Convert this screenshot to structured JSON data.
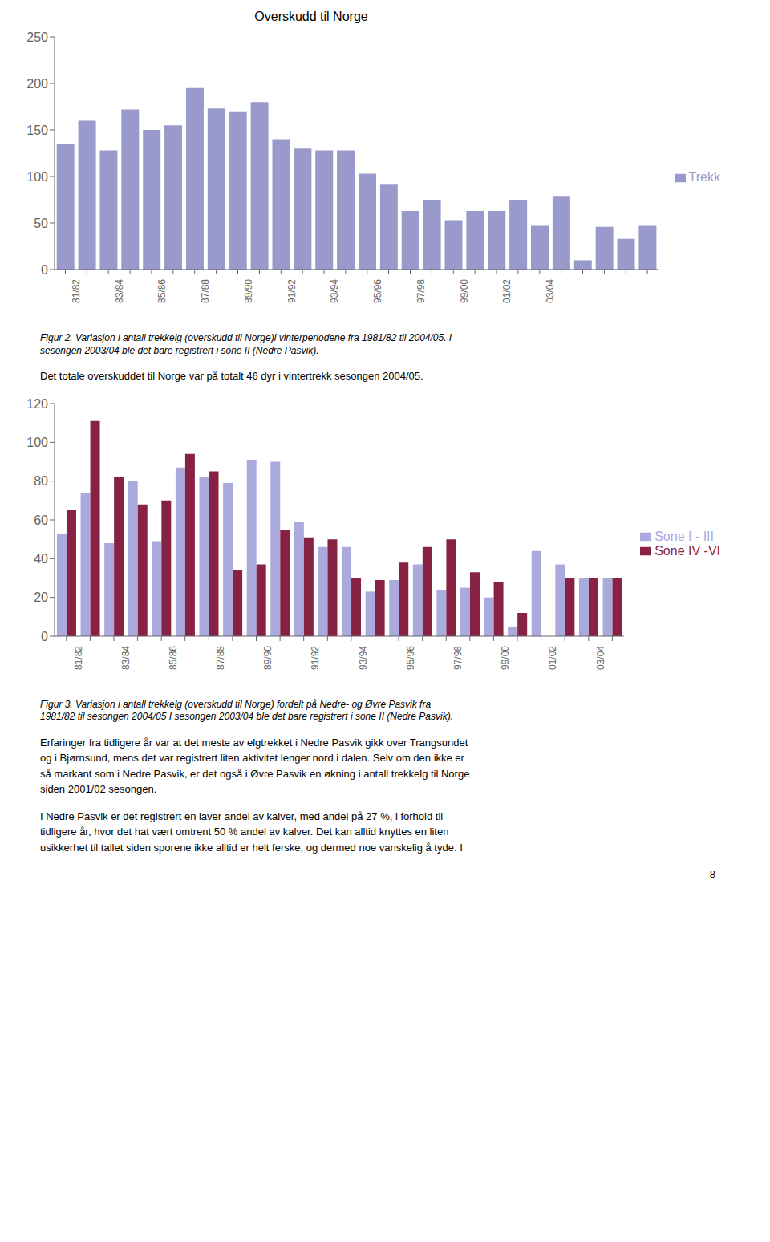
{
  "chart_data": [
    {
      "type": "bar",
      "title": "Overskudd til Norge",
      "categories": [
        "81/82",
        null,
        "83/84",
        null,
        "85/86",
        null,
        "87/88",
        null,
        "89/90",
        null,
        "91/92",
        null,
        "93/94",
        null,
        "95/96",
        null,
        "97/98",
        null,
        "99/00",
        null,
        "01/02",
        null,
        "03/04",
        null,
        null,
        null,
        null,
        null
      ],
      "series": [
        {
          "name": "Trekk",
          "color": "#9999cc",
          "values": [
            135,
            160,
            128,
            172,
            150,
            155,
            195,
            173,
            170,
            180,
            140,
            130,
            128,
            128,
            103,
            92,
            63,
            75,
            53,
            63,
            63,
            75,
            47,
            79,
            10,
            46,
            33,
            47
          ]
        }
      ],
      "ylim": [
        0,
        250
      ],
      "yticks": [
        0,
        50,
        100,
        150,
        200,
        250
      ],
      "grid": false,
      "legend": "right",
      "annotations": [
        "Figur 2. Variasjon i antall trekkelg (overskudd til Norge)i vinterperiodene fra 1981/82 til 2004/05. I\nsesongen 2003/04 ble det bare registrert i sone II (Nedre Pasvik).",
        "Det totale overskuddet til Norge var på totalt 46 dyr i vintertrekk sesongen 2004/05."
      ]
    },
    {
      "type": "bar",
      "categories": [
        "81/82",
        null,
        "83/84",
        null,
        "85/86",
        null,
        "87/88",
        null,
        "89/90",
        null,
        "91/92",
        null,
        "93/94",
        null,
        "95/96",
        null,
        "97/98",
        null,
        "99/00",
        null,
        "01/02",
        null,
        "03/04",
        null
      ],
      "series": [
        {
          "name": "Sone I - III",
          "color": "#aaaadd",
          "values": [
            53,
            74,
            48,
            80,
            49,
            87,
            82,
            79,
            91,
            90,
            59,
            46,
            46,
            23,
            29,
            37,
            24,
            25,
            20,
            5,
            44,
            37,
            30,
            30
          ]
        },
        {
          "name": "Sone IV -VI",
          "color": "#882244",
          "values": [
            65,
            111,
            82,
            68,
            70,
            94,
            85,
            34,
            37,
            55,
            51,
            50,
            30,
            29,
            38,
            46,
            50,
            33,
            28,
            12,
            0,
            30,
            30,
            30
          ]
        }
      ],
      "ylim": [
        0,
        120
      ],
      "yticks": [
        0,
        20,
        40,
        60,
        80,
        100,
        120
      ],
      "grid": false,
      "legend": "right",
      "annotations": [
        "Figur 3. Variasjon i antall trekkelg (overskudd til Norge) fordelt på Nedre- og Øvre Pasvik fra\n1981/82 til sesongen 2004/05 I sesongen 2003/04 ble det bare registrert i sone II (Nedre Pasvik).",
        "Erfaringer fra tidligere år var at det meste av elgtrekket i Nedre Pasvik gikk over Trangsundet\nog i Bjørnsund, mens det var registrert liten aktivitet lenger nord i dalen. Selv om den ikke er\nså markant som i Nedre Pasvik, er det også i Øvre Pasvik en økning i antall trekkelg til Norge\nsiden 2001/02 sesongen.",
        "I Nedre Pasvik er det registrert en laver andel av kalver, med andel på 27 %, i forhold til\ntidligere år, hvor det hat vært omtrent 50 % andel av kalver. Det kan alltid knyttes en liten\nusikkerhet til tallet siden sporene ikke alltid er helt ferske, og dermed noe vanskelig å tyde. I",
        "8"
      ]
    }
  ]
}
